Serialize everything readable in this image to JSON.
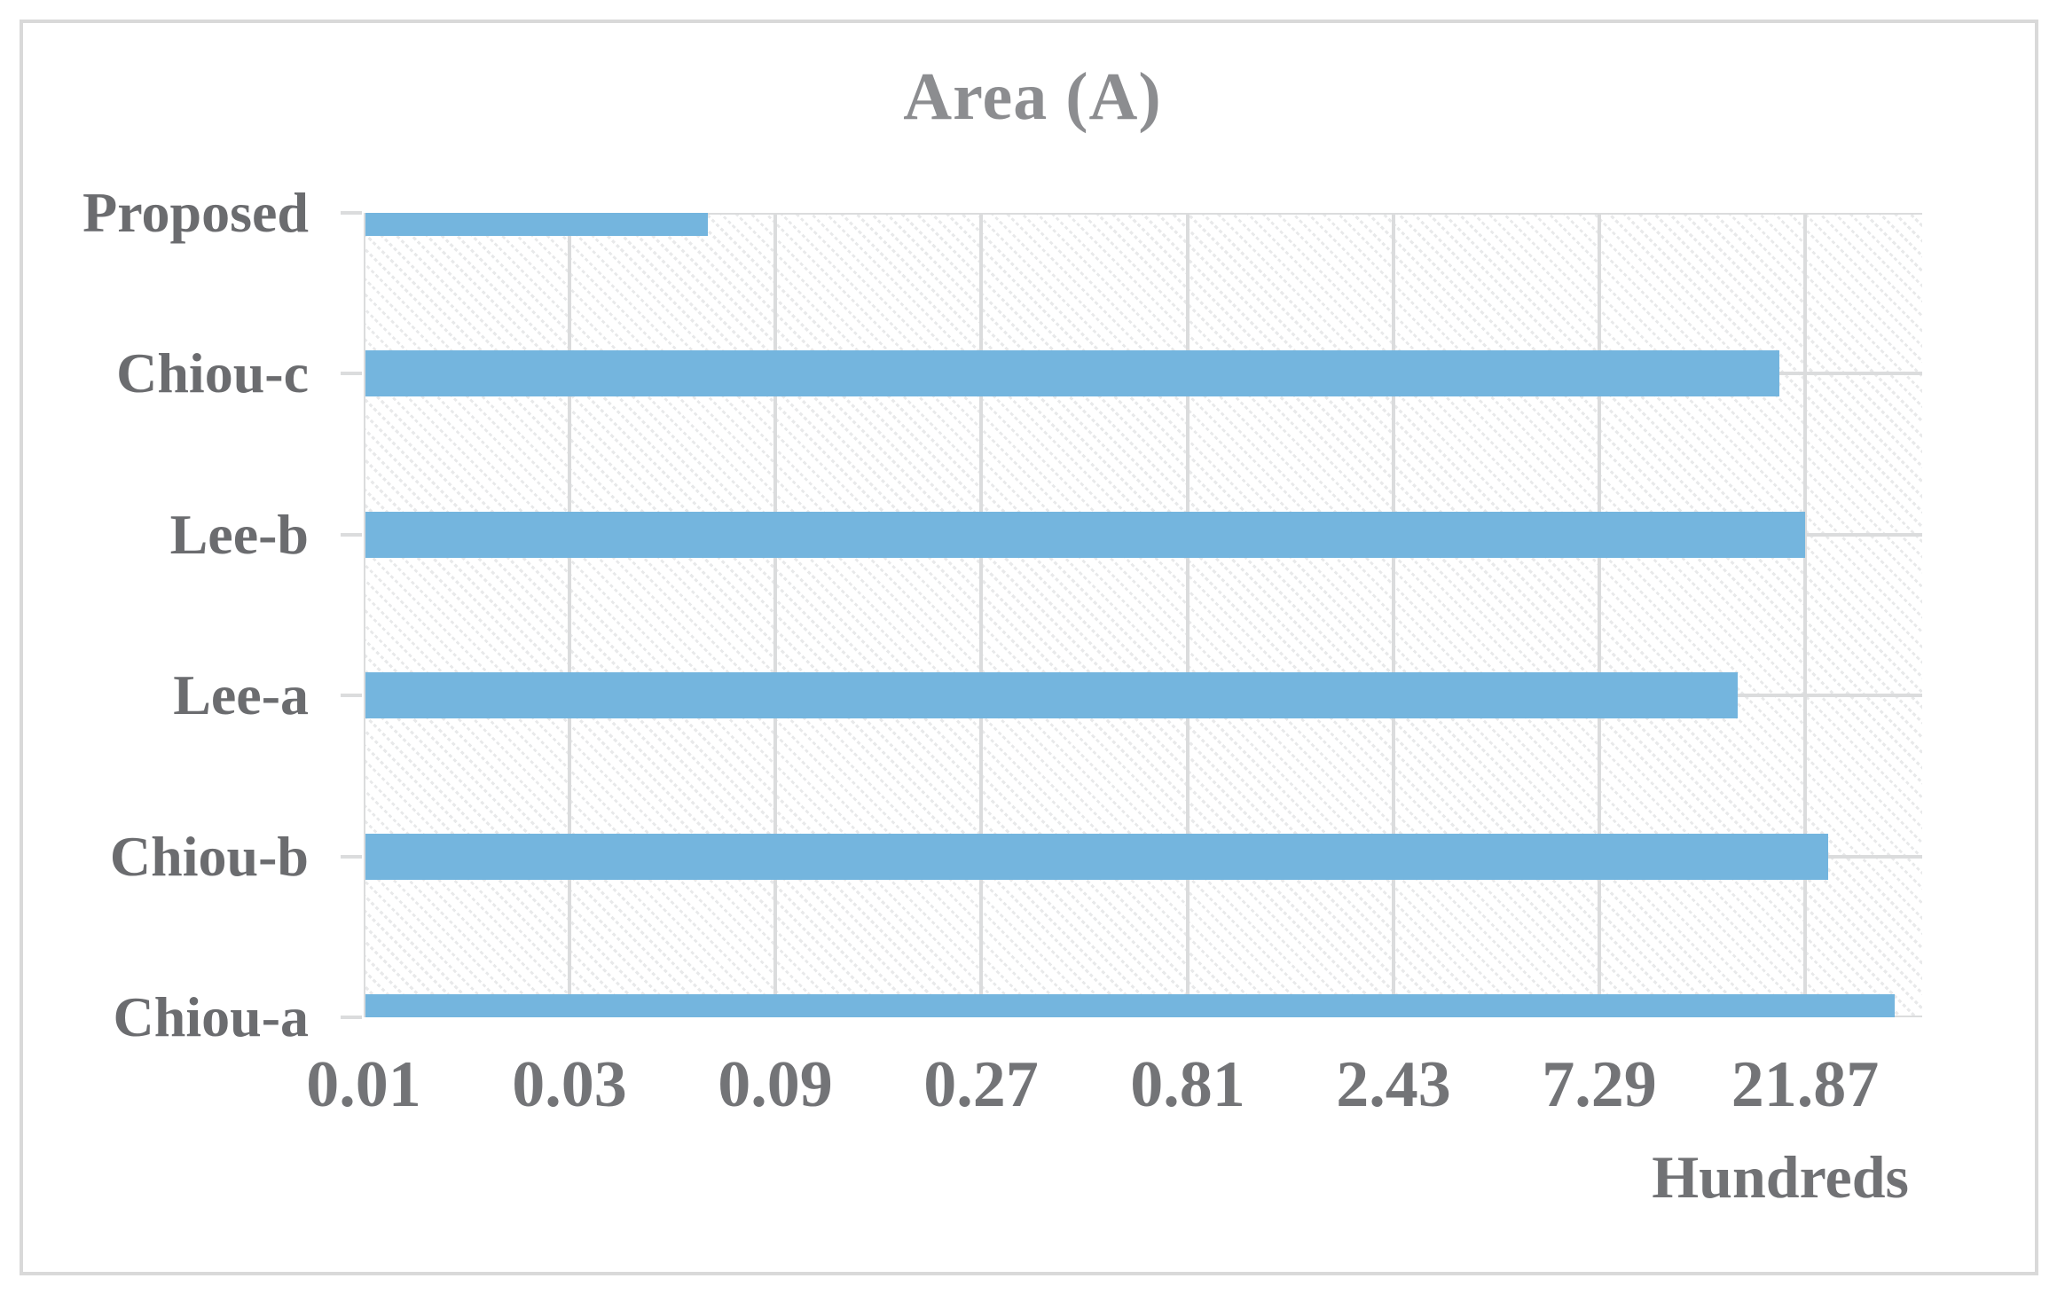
{
  "chart": {
    "title": "Area (A)",
    "axis_multiplier_label": "Hundreds"
  },
  "chart_data": {
    "type": "bar",
    "orientation": "horizontal",
    "title": "Area (A)",
    "categories_top_to_bottom": [
      "Proposed",
      "Chiou-c",
      "Lee-b",
      "Lee-a",
      "Chiou-b",
      "Chiou-a"
    ],
    "values_hundreds": [
      0.062,
      18.88,
      21.66,
      15.1,
      24.5,
      34.9
    ],
    "x_ticks": [
      "0.01",
      "0.03",
      "0.09",
      "0.27",
      "0.81",
      "2.43",
      "7.29",
      "21.87"
    ],
    "x_scale": "log",
    "x_log_base": 3,
    "xlim": [
      0.01,
      41
    ],
    "x_axis_multiplier_label": "Hundreds",
    "ylabel": "",
    "xlabel": "",
    "grid": true,
    "legend": false,
    "hatch_background": "light diagonal pattern fill inside plot area"
  },
  "colors": {
    "bar": "#74B5DE",
    "gridline": "#DBDCDD",
    "frame_border": "#D9D9D9",
    "title_text": "#8C8D90",
    "category_text": "#6B6C6F",
    "tick_text": "#737477",
    "background": "#FFFFFF"
  }
}
